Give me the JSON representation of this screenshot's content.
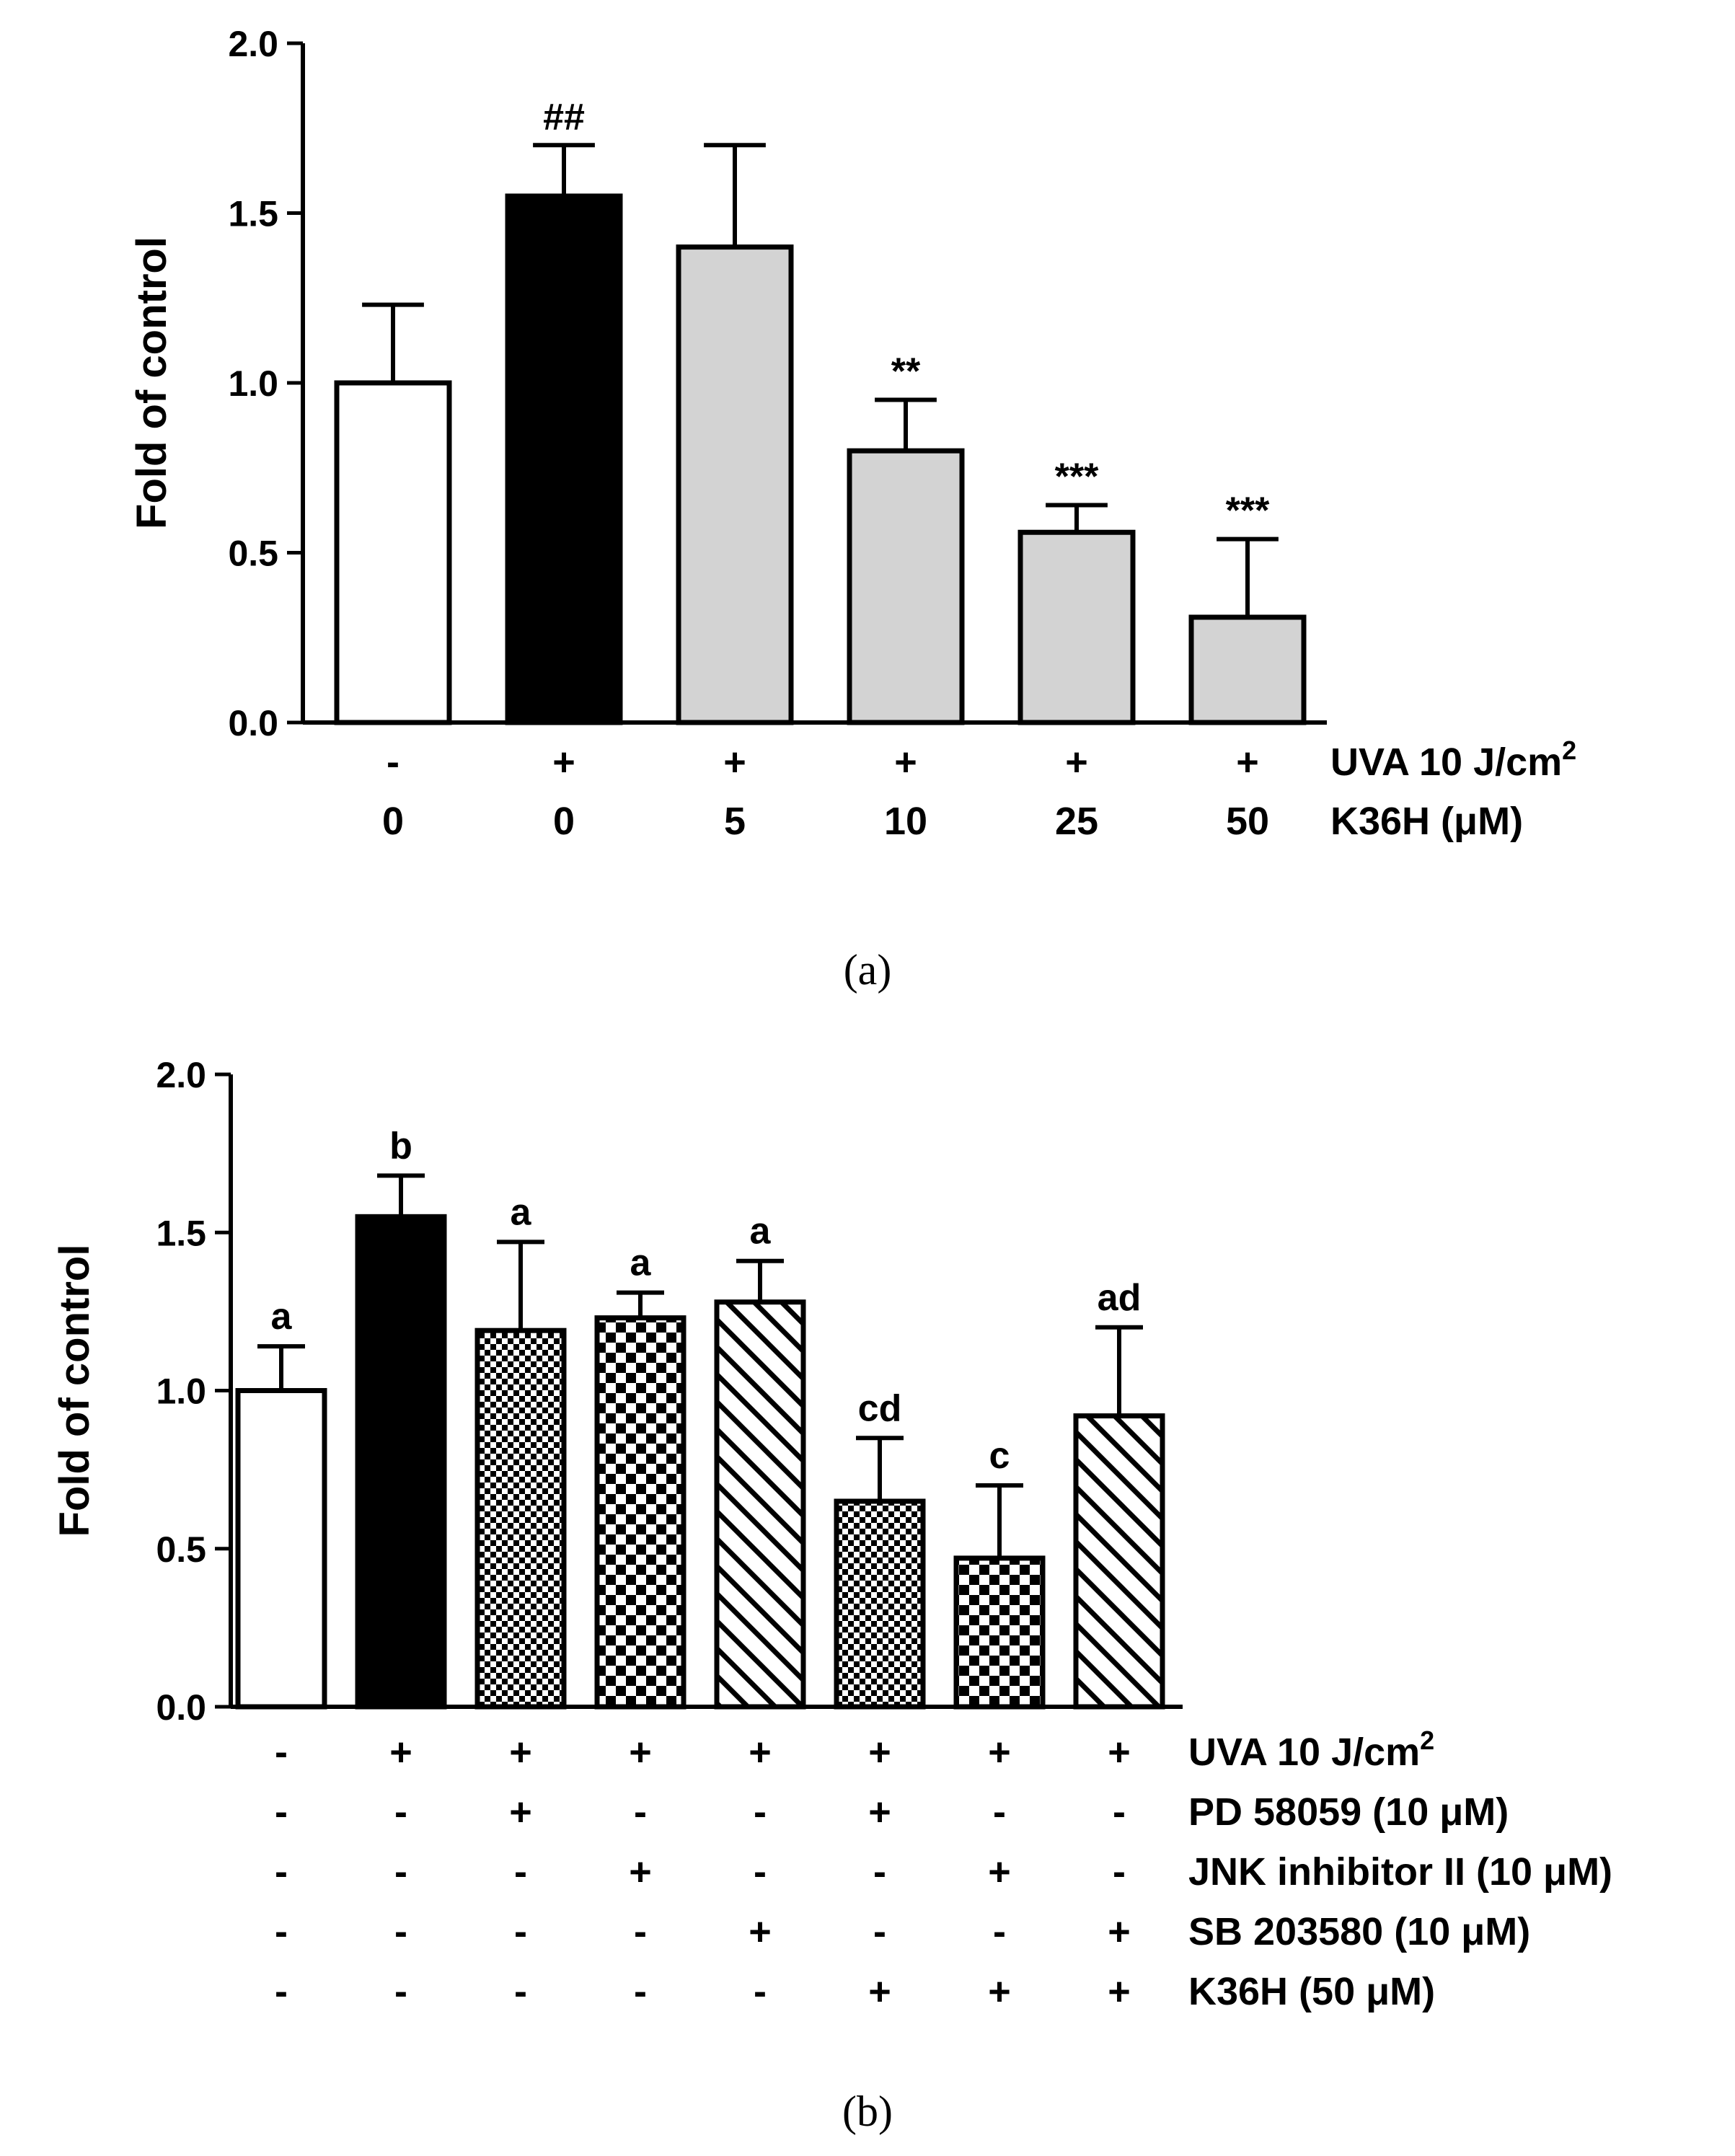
{
  "chart_data": [
    {
      "type": "bar",
      "panel_label": "(a)",
      "ylabel": "Fold of control",
      "ylim": [
        0,
        2.0
      ],
      "yticks": [
        "0.0",
        "0.5",
        "1.0",
        "1.5",
        "2.0"
      ],
      "bars": [
        {
          "value": 1.0,
          "error": 0.23,
          "fill": "white",
          "annotation": ""
        },
        {
          "value": 1.55,
          "error": 0.15,
          "fill": "black",
          "annotation": "##"
        },
        {
          "value": 1.4,
          "error": 0.3,
          "fill": "gray",
          "annotation": ""
        },
        {
          "value": 0.8,
          "error": 0.15,
          "fill": "gray",
          "annotation": "**"
        },
        {
          "value": 0.56,
          "error": 0.08,
          "fill": "gray",
          "annotation": "***"
        },
        {
          "value": 0.31,
          "error": 0.23,
          "fill": "gray",
          "annotation": "***"
        }
      ],
      "condition_rows": [
        {
          "label": "UVA 10 J/cm",
          "superscript": "2",
          "values": [
            "-",
            "+",
            "+",
            "+",
            "+",
            "+"
          ]
        },
        {
          "label": "K36H (μM)",
          "superscript": "",
          "values": [
            "0",
            "0",
            "5",
            "10",
            "25",
            "50"
          ]
        }
      ],
      "colors": {
        "gray": "#d3d3d3",
        "black": "#000000",
        "white": "#ffffff"
      }
    },
    {
      "type": "bar",
      "panel_label": "(b)",
      "ylabel": "Fold of control",
      "ylim": [
        0,
        2.0
      ],
      "yticks": [
        "0.0",
        "0.5",
        "1.0",
        "1.5",
        "2.0"
      ],
      "bars": [
        {
          "value": 1.0,
          "error": 0.14,
          "fill": "white",
          "annotation": "a"
        },
        {
          "value": 1.55,
          "error": 0.13,
          "fill": "black",
          "annotation": "b"
        },
        {
          "value": 1.19,
          "error": 0.28,
          "fill": "check-small",
          "annotation": "a"
        },
        {
          "value": 1.23,
          "error": 0.08,
          "fill": "check-large",
          "annotation": "a"
        },
        {
          "value": 1.28,
          "error": 0.13,
          "fill": "hatch",
          "annotation": "a"
        },
        {
          "value": 0.65,
          "error": 0.2,
          "fill": "check-small",
          "annotation": "cd"
        },
        {
          "value": 0.47,
          "error": 0.23,
          "fill": "check-large",
          "annotation": "c"
        },
        {
          "value": 0.92,
          "error": 0.28,
          "fill": "hatch",
          "annotation": "ad"
        }
      ],
      "condition_rows": [
        {
          "label": "UVA 10 J/cm",
          "superscript": "2",
          "values": [
            "-",
            "+",
            "+",
            "+",
            "+",
            "+",
            "+",
            "+"
          ]
        },
        {
          "label": "PD 58059 (10 μM)",
          "superscript": "",
          "values": [
            "-",
            "-",
            "+",
            "-",
            "-",
            "+",
            "-",
            "-"
          ]
        },
        {
          "label": "JNK inhibitor II (10 μM)",
          "superscript": "",
          "values": [
            "-",
            "-",
            "-",
            "+",
            "-",
            "-",
            "+",
            "-"
          ]
        },
        {
          "label": "SB 203580 (10 μM)",
          "superscript": "",
          "values": [
            "-",
            "-",
            "-",
            "-",
            "+",
            "-",
            "-",
            "+"
          ]
        },
        {
          "label": "K36H (50 μM)",
          "superscript": "",
          "values": [
            "-",
            "-",
            "-",
            "-",
            "-",
            "+",
            "+",
            "+"
          ]
        }
      ],
      "colors": {
        "black": "#000000",
        "white": "#ffffff"
      }
    }
  ]
}
